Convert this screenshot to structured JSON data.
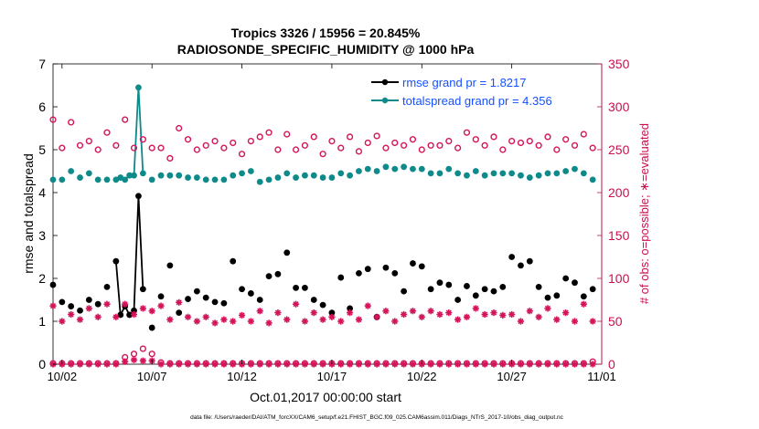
{
  "chart_data": {
    "type": "line",
    "title_lines": [
      "Tropics 3326 / 15956 = 20.845%",
      "RADIOSONDE_SPECIFIC_HUMIDITY @ 1000 hPa"
    ],
    "ylabel_left": "rmse and totalspread",
    "ylabel_right": "# of obs: o=possible; ∗=evaluated",
    "xlabel": "Oct.01,2017 00:00:00 start",
    "footer": "data file: /Users/raeder/DAI/ATM_forcXX/CAM6_setup/f.e21.FHIST_BGC.f09_025.CAM6assim.011/Diags_NTrS_2017-10/obs_diag_output.nc",
    "xlim": [
      1.5,
      32.0
    ],
    "ylim_left": [
      0,
      7
    ],
    "ylim_right": [
      0,
      350
    ],
    "x_ticks": [
      {
        "v": 2,
        "label": "10/02"
      },
      {
        "v": 7,
        "label": "10/07"
      },
      {
        "v": 12,
        "label": "10/12"
      },
      {
        "v": 17,
        "label": "10/17"
      },
      {
        "v": 22,
        "label": "10/22"
      },
      {
        "v": 27,
        "label": "10/27"
      },
      {
        "v": 32,
        "label": "11/01"
      }
    ],
    "y_ticks_left": [
      "0",
      "1",
      "2",
      "3",
      "4",
      "5",
      "6",
      "7"
    ],
    "y_ticks_right": [
      "0",
      "50",
      "100",
      "150",
      "200",
      "250",
      "300",
      "350"
    ],
    "colors": {
      "rmse": "#000000",
      "spread": "#0f8a8a",
      "obs": "#d4145a",
      "legend_text": "#1550ff",
      "right_axis": "#c8104e"
    },
    "legend": [
      {
        "label": "rmse grand pr = 1.8217",
        "series": "rmse"
      },
      {
        "label": "totalspread grand pr = 4.356",
        "series": "spread"
      }
    ],
    "series": [
      {
        "name": "rmse",
        "axis": "left",
        "x": [
          1.5,
          2.0,
          2.5,
          3.0,
          3.5,
          4.0,
          4.5,
          5.0,
          5.25,
          5.5,
          5.75,
          6.0,
          6.25,
          6.5,
          7.0,
          7.5,
          8.0,
          8.5,
          9.0,
          9.5,
          10.0,
          10.5,
          11.0,
          11.5,
          12.0,
          12.5,
          13.0,
          13.5,
          14.0,
          14.5,
          15.0,
          15.5,
          16.0,
          16.5,
          17.0,
          17.5,
          18.0,
          18.5,
          19.0,
          19.5,
          20.0,
          20.5,
          21.0,
          21.5,
          22.0,
          22.5,
          23.0,
          23.5,
          24.0,
          24.5,
          25.0,
          25.5,
          26.0,
          26.5,
          27.0,
          27.5,
          28.0,
          28.5,
          29.0,
          29.5,
          30.0,
          30.5,
          31.0,
          31.5
        ],
        "values": [
          1.85,
          1.45,
          1.35,
          1.25,
          1.5,
          1.4,
          1.8,
          2.4,
          1.15,
          1.35,
          1.15,
          1.25,
          3.92,
          1.75,
          0.85,
          1.58,
          2.3,
          1.2,
          1.52,
          1.7,
          1.55,
          1.45,
          1.42,
          2.4,
          1.75,
          1.65,
          1.5,
          2.05,
          2.1,
          2.6,
          1.78,
          1.78,
          1.5,
          1.38,
          1.2,
          2.02,
          1.3,
          2.12,
          2.22,
          1.1,
          2.25,
          2.12,
          1.7,
          2.35,
          2.28,
          1.75,
          1.9,
          1.85,
          1.5,
          1.82,
          1.6,
          1.75,
          1.7,
          1.8,
          2.5,
          2.3,
          2.4,
          1.8,
          1.55,
          1.6,
          2.0,
          1.9,
          1.58,
          1.75
        ]
      },
      {
        "name": "totalspread",
        "axis": "left",
        "x": [
          1.5,
          2.0,
          2.5,
          3.0,
          3.5,
          4.0,
          4.5,
          5.0,
          5.25,
          5.5,
          5.75,
          6.0,
          6.25,
          6.5,
          7.0,
          7.5,
          8.0,
          8.5,
          9.0,
          9.5,
          10.0,
          10.5,
          11.0,
          11.5,
          12.0,
          12.5,
          13.0,
          13.5,
          14.0,
          14.5,
          15.0,
          15.5,
          16.0,
          16.5,
          17.0,
          17.5,
          18.0,
          18.5,
          19.0,
          19.5,
          20.0,
          20.5,
          21.0,
          21.5,
          22.0,
          22.5,
          23.0,
          23.5,
          24.0,
          24.5,
          25.0,
          25.5,
          26.0,
          26.5,
          27.0,
          27.5,
          28.0,
          28.5,
          29.0,
          29.5,
          30.0,
          30.5,
          31.0,
          31.5
        ],
        "values": [
          4.3,
          4.3,
          4.5,
          4.35,
          4.45,
          4.3,
          4.3,
          4.3,
          4.35,
          4.3,
          4.4,
          4.4,
          6.45,
          4.45,
          4.3,
          4.4,
          4.4,
          4.4,
          4.35,
          4.35,
          4.3,
          4.3,
          4.3,
          4.4,
          4.45,
          4.5,
          4.25,
          4.3,
          4.35,
          4.45,
          4.35,
          4.4,
          4.4,
          4.35,
          4.35,
          4.45,
          4.4,
          4.5,
          4.55,
          4.5,
          4.6,
          4.55,
          4.6,
          4.55,
          4.55,
          4.45,
          4.45,
          4.55,
          4.45,
          4.4,
          4.5,
          4.4,
          4.45,
          4.45,
          4.45,
          4.4,
          4.35,
          4.4,
          4.45,
          4.45,
          4.5,
          4.55,
          4.45,
          4.3
        ]
      },
      {
        "name": "obs possible",
        "axis": "right",
        "x": [
          1.5,
          2.0,
          2.5,
          3.0,
          3.5,
          4.0,
          4.5,
          5.0,
          5.5,
          6.0,
          6.5,
          7.0,
          7.5,
          8.0,
          8.5,
          9.0,
          9.5,
          10.0,
          10.5,
          11.0,
          11.5,
          12.0,
          12.5,
          13.0,
          13.5,
          14.0,
          14.5,
          15.0,
          15.5,
          16.0,
          16.5,
          17.0,
          17.5,
          18.0,
          18.5,
          19.0,
          19.5,
          20.0,
          20.5,
          21.0,
          21.5,
          22.0,
          22.5,
          23.0,
          23.5,
          24.0,
          24.5,
          25.0,
          25.5,
          26.0,
          26.5,
          27.0,
          27.5,
          28.0,
          28.5,
          29.0,
          29.5,
          30.0,
          30.5,
          31.0,
          31.5
        ],
        "values": [
          285,
          252,
          282,
          255,
          260,
          250,
          270,
          255,
          285,
          252,
          262,
          252,
          252,
          240,
          275,
          262,
          250,
          255,
          260,
          252,
          258,
          245,
          260,
          265,
          270,
          250,
          268,
          250,
          255,
          265,
          245,
          260,
          252,
          265,
          248,
          258,
          266,
          252,
          258,
          255,
          262,
          250,
          255,
          255,
          260,
          252,
          270,
          262,
          255,
          265,
          250,
          260,
          258,
          260,
          255,
          265,
          250,
          262,
          255,
          268,
          252
        ]
      },
      {
        "name": "obs evaluated",
        "axis": "right",
        "x": [
          1.5,
          2.0,
          2.5,
          3.0,
          3.5,
          4.0,
          4.5,
          5.0,
          5.5,
          6.0,
          6.5,
          7.0,
          7.5,
          8.0,
          8.5,
          9.0,
          9.5,
          10.0,
          10.5,
          11.0,
          11.5,
          12.0,
          12.5,
          13.0,
          13.5,
          14.0,
          14.5,
          15.0,
          15.5,
          16.0,
          16.5,
          17.0,
          17.5,
          18.0,
          18.5,
          19.0,
          19.5,
          20.0,
          20.5,
          21.0,
          21.5,
          22.0,
          22.5,
          23.0,
          23.5,
          24.0,
          24.5,
          25.0,
          25.5,
          26.0,
          26.5,
          27.0,
          27.5,
          28.0,
          28.5,
          29.0,
          29.5,
          30.0,
          30.5,
          31.0,
          31.5
        ],
        "values": [
          68,
          50,
          58,
          52,
          65,
          55,
          70,
          55,
          70,
          58,
          65,
          62,
          68,
          52,
          72,
          55,
          50,
          55,
          48,
          52,
          50,
          57,
          50,
          62,
          48,
          60,
          52,
          70,
          50,
          60,
          52,
          55,
          50,
          60,
          52,
          68,
          55,
          62,
          50,
          58,
          62,
          55,
          62,
          58,
          60,
          52,
          55,
          65,
          58,
          60,
          57,
          58,
          50,
          62,
          55,
          65,
          52,
          60,
          50,
          70,
          50
        ]
      },
      {
        "name": "rejected possible",
        "axis": "right",
        "x": [
          1.5,
          2.0,
          2.5,
          3.0,
          3.5,
          4.0,
          4.5,
          5.0,
          5.5,
          6.0,
          6.5,
          7.0,
          7.5,
          8.0,
          8.5,
          9.0,
          9.5,
          10.0,
          10.5,
          11.0,
          11.5,
          12.0,
          12.5,
          13.0,
          13.5,
          14.0,
          14.5,
          15.0,
          15.5,
          16.0,
          16.5,
          17.0,
          17.5,
          18.0,
          18.5,
          19.0,
          19.5,
          20.0,
          20.5,
          21.0,
          21.5,
          22.0,
          22.5,
          23.0,
          23.5,
          24.0,
          24.5,
          25.0,
          25.5,
          26.0,
          26.5,
          27.0,
          27.5,
          28.0,
          28.5,
          29.0,
          29.5,
          30.0,
          30.5,
          31.0,
          31.5
        ],
        "values": [
          1,
          1,
          1,
          1,
          1,
          1,
          1,
          1,
          8,
          12,
          18,
          12,
          2,
          1,
          1,
          1,
          1,
          1,
          1,
          1,
          1,
          1,
          1,
          1,
          1,
          1,
          1,
          1,
          1,
          1,
          1,
          1,
          1,
          1,
          1,
          1,
          1,
          1,
          1,
          1,
          1,
          1,
          1,
          1,
          1,
          1,
          1,
          1,
          1,
          1,
          1,
          1,
          1,
          1,
          1,
          1,
          1,
          1,
          1,
          1,
          3
        ]
      },
      {
        "name": "rejected evaluated",
        "axis": "right",
        "x": [
          1.5,
          2.0,
          2.5,
          3.0,
          3.5,
          4.0,
          4.5,
          5.0,
          5.5,
          6.0,
          6.5,
          7.0,
          7.5,
          8.0,
          8.5,
          9.0,
          9.5,
          10.0,
          10.5,
          11.0,
          11.5,
          12.0,
          12.5,
          13.0,
          13.5,
          14.0,
          14.5,
          15.0,
          15.5,
          16.0,
          16.5,
          17.0,
          17.5,
          18.0,
          18.5,
          19.0,
          19.5,
          20.0,
          20.5,
          21.0,
          21.5,
          22.0,
          22.5,
          23.0,
          23.5,
          24.0,
          24.5,
          25.0,
          25.5,
          26.0,
          26.5,
          27.0,
          27.5,
          28.0,
          28.5,
          29.0,
          29.5,
          30.0,
          30.5,
          31.0,
          31.5
        ],
        "values": [
          0,
          0,
          0,
          0,
          0,
          0,
          0,
          0,
          3,
          5,
          4,
          4,
          0,
          0,
          0,
          0,
          0,
          0,
          0,
          0,
          0,
          0,
          0,
          0,
          0,
          0,
          0,
          0,
          0,
          0,
          0,
          0,
          0,
          0,
          0,
          0,
          0,
          0,
          0,
          0,
          0,
          0,
          0,
          0,
          0,
          0,
          0,
          0,
          0,
          0,
          0,
          0,
          0,
          0,
          0,
          0,
          0,
          0,
          0,
          0,
          0
        ]
      }
    ]
  }
}
